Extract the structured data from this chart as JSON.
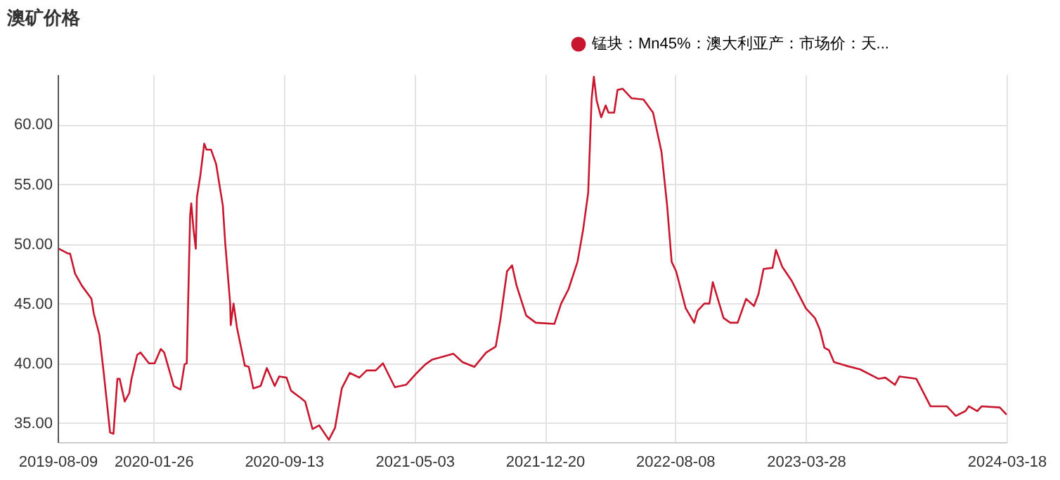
{
  "chart_data": {
    "type": "line",
    "title": "澳矿价格",
    "legend": "top right",
    "grid": true,
    "x": [
      "2019-08-11",
      "2019-08-27",
      "2019-08-31",
      "2019-09-09",
      "2019-09-21",
      "2019-10-08",
      "2019-10-12",
      "2019-10-22",
      "2019-10-30",
      "2019-11-10",
      "2019-11-16",
      "2019-11-23",
      "2019-11-27",
      "2019-12-06",
      "2019-12-14",
      "2019-12-18",
      "2019-12-28",
      "2020-01-03",
      "2020-01-18",
      "2020-01-28",
      "2020-02-08",
      "2020-02-14",
      "2020-03-02",
      "2020-03-14",
      "2020-03-21",
      "2020-03-25",
      "2020-03-31",
      "2020-04-02",
      "2020-04-06",
      "2020-04-10",
      "2020-04-12",
      "2020-04-18",
      "2020-04-25",
      "2020-04-29",
      "2020-05-07",
      "2020-05-16",
      "2020-05-28",
      "2020-06-01",
      "2020-06-10",
      "2020-06-11",
      "2020-06-16",
      "2020-06-22",
      "2020-07-06",
      "2020-07-13",
      "2020-07-21",
      "2020-08-03",
      "2020-08-14",
      "2020-08-28",
      "2020-09-05",
      "2020-09-18",
      "2020-09-26",
      "2020-10-13",
      "2020-10-21",
      "2020-11-03",
      "2020-11-15",
      "2020-12-02",
      "2020-12-13",
      "2020-12-25",
      "2021-01-08",
      "2021-01-25",
      "2021-02-07",
      "2021-02-23",
      "2021-03-08",
      "2021-03-29",
      "2021-04-18",
      "2021-05-05",
      "2021-05-22",
      "2021-06-03",
      "2021-07-11",
      "2021-07-27",
      "2021-08-17",
      "2021-09-07",
      "2021-09-24",
      "2021-10-02",
      "2021-10-14",
      "2021-10-23",
      "2021-10-31",
      "2021-11-17",
      "2021-12-04",
      "2022-01-06",
      "2022-01-18",
      "2022-01-31",
      "2022-02-16",
      "2022-02-26",
      "2022-03-07",
      "2022-03-13",
      "2022-03-17",
      "2022-03-22",
      "2022-03-30",
      "2022-04-07",
      "2022-04-12",
      "2022-04-22",
      "2022-04-28",
      "2022-05-07",
      "2022-05-23",
      "2022-06-13",
      "2022-06-30",
      "2022-07-15",
      "2022-07-25",
      "2022-08-02",
      "2022-08-10",
      "2022-08-27",
      "2022-09-11",
      "2022-09-17",
      "2022-09-29",
      "2022-10-08",
      "2022-10-14",
      "2022-11-02",
      "2022-11-14",
      "2022-11-27",
      "2022-12-12",
      "2022-12-26",
      "2023-01-03",
      "2023-01-12",
      "2023-01-28",
      "2023-02-03",
      "2023-02-14",
      "2023-03-03",
      "2023-03-28",
      "2023-04-13",
      "2023-04-22",
      "2023-04-30",
      "2023-05-08",
      "2023-05-17",
      "2023-06-07",
      "2023-07-02",
      "2023-08-04",
      "2023-08-16",
      "2023-09-02",
      "2023-09-10",
      "2023-10-10",
      "2023-11-04",
      "2023-12-03",
      "2023-12-19",
      "2024-01-05",
      "2024-01-11",
      "2024-01-26",
      "2024-02-03",
      "2024-03-06",
      "2024-03-18"
    ],
    "series": [
      {
        "name": "锰块：Mn45%：澳大利亚产：市场价：天...",
        "color": "#c8162e",
        "values": [
          49.6,
          49.2,
          49.2,
          47.5,
          46.5,
          45.4,
          44.2,
          42.4,
          39.1,
          34.2,
          34.1,
          38.7,
          38.7,
          36.8,
          37.5,
          38.7,
          40.7,
          40.9,
          40.0,
          40.0,
          41.2,
          40.9,
          38.1,
          37.8,
          39.9,
          40.0,
          52.4,
          53.4,
          51.2,
          49.6,
          53.9,
          55.7,
          58.4,
          57.9,
          57.9,
          56.7,
          53.2,
          50.2,
          45.0,
          43.2,
          45.0,
          43.0,
          39.8,
          39.7,
          37.9,
          38.1,
          39.6,
          38.1,
          38.9,
          38.8,
          37.7,
          37.1,
          36.8,
          34.5,
          34.8,
          33.6,
          34.6,
          37.9,
          39.2,
          38.8,
          39.4,
          39.4,
          40.0,
          38.0,
          38.2,
          39.1,
          39.9,
          40.3,
          40.8,
          40.1,
          39.7,
          40.9,
          41.4,
          43.6,
          47.7,
          48.2,
          46.5,
          44.0,
          43.4,
          43.3,
          45.0,
          46.2,
          48.5,
          51.2,
          54.3,
          62.1,
          64.0,
          62.0,
          60.6,
          61.6,
          61.0,
          61.0,
          62.9,
          63.0,
          62.2,
          62.1,
          61.0,
          57.7,
          53.2,
          48.5,
          47.7,
          44.6,
          43.4,
          44.4,
          45.0,
          45.0,
          46.8,
          43.8,
          43.4,
          43.4,
          45.4,
          44.8,
          45.8,
          47.9,
          48.0,
          49.5,
          48.1,
          46.9,
          44.6,
          43.8,
          42.8,
          41.3,
          41.1,
          40.1,
          39.8,
          39.5,
          38.7,
          38.8,
          38.2,
          38.9,
          38.7,
          36.4,
          36.4,
          35.6,
          36.0,
          36.4,
          36.0,
          36.4,
          36.3,
          35.7
        ]
      }
    ],
    "xlim": [
      "2019-08-09",
      "2024-03-18"
    ],
    "xticks": [
      "2019-08-09",
      "2020-01-26",
      "2020-09-13",
      "2021-05-03",
      "2021-12-20",
      "2022-08-08",
      "2023-03-28",
      "2024-03-18"
    ],
    "ylim": [
      33.4,
      64.2
    ],
    "yticks": [
      {
        "value": 35,
        "label": "35.00"
      },
      {
        "value": 40,
        "label": "40.00"
      },
      {
        "value": 45,
        "label": "45.00"
      },
      {
        "value": 50,
        "label": "50.00"
      },
      {
        "value": 55,
        "label": "55.00"
      },
      {
        "value": 60,
        "label": "60.00"
      }
    ]
  }
}
